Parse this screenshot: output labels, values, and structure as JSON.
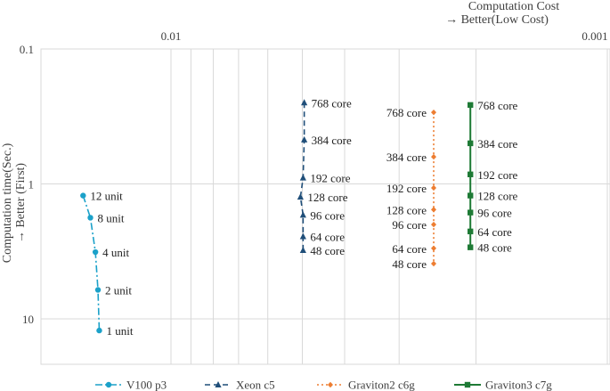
{
  "chart_data": {
    "type": "line",
    "title": "",
    "xlabel": "Computation Cost",
    "xlabel_sub": "→ Better(Low Cost)",
    "ylabel": "Computation time(Sec.)",
    "ylabel_sub": "→ Better (First)",
    "x_scale": "log",
    "x_reversed": true,
    "x_ticks": [
      {
        "value": 0.01,
        "label": "0.01"
      },
      {
        "value": 0.001,
        "label": "0.001"
      }
    ],
    "y_scale": "log",
    "y_reversed": true,
    "y_ticks": [
      {
        "value": 0.1,
        "label": "0.1"
      },
      {
        "value": 1,
        "label": "1"
      },
      {
        "value": 10,
        "label": "10"
      }
    ],
    "xlim": [
      0.02,
      0.001
    ],
    "ylim": [
      0.1,
      25
    ],
    "grid": true,
    "legend_position": "bottom",
    "series": [
      {
        "name": "V100 p3",
        "color": "#1ba1c9",
        "dash": "dashdot",
        "marker": "circle",
        "points": [
          {
            "x": 0.0159,
            "y": 1.22,
            "label": "12 unit"
          },
          {
            "x": 0.0153,
            "y": 1.78,
            "label": "8 unit"
          },
          {
            "x": 0.0149,
            "y": 3.2,
            "label": "4 unit"
          },
          {
            "x": 0.0147,
            "y": 6.1,
            "label": "2 unit"
          },
          {
            "x": 0.0146,
            "y": 12.2,
            "label": "1 unit"
          }
        ]
      },
      {
        "name": "Xeon c5",
        "color": "#1f4e79",
        "dash": "dashed",
        "marker": "triangle",
        "points": [
          {
            "x": 0.00495,
            "y": 0.25,
            "label": "768 core"
          },
          {
            "x": 0.00495,
            "y": 0.47,
            "label": "384 core"
          },
          {
            "x": 0.00498,
            "y": 0.9,
            "label": "192 core"
          },
          {
            "x": 0.00505,
            "y": 1.25,
            "label": "128 core"
          },
          {
            "x": 0.00498,
            "y": 1.7,
            "label": "96 core"
          },
          {
            "x": 0.00498,
            "y": 2.45,
            "label": "64 core"
          },
          {
            "x": 0.00498,
            "y": 3.1,
            "label": "48 core"
          }
        ]
      },
      {
        "name": "Graviton2 c6g",
        "color": "#ed7d31",
        "dash": "dotted",
        "marker": "diamond",
        "points": [
          {
            "x": 0.0025,
            "y": 0.295,
            "label": "768 core"
          },
          {
            "x": 0.0025,
            "y": 0.63,
            "label": "384 core"
          },
          {
            "x": 0.0025,
            "y": 1.07,
            "label": "192 core"
          },
          {
            "x": 0.0025,
            "y": 1.55,
            "label": "128 core"
          },
          {
            "x": 0.0025,
            "y": 2.0,
            "label": "96 core"
          },
          {
            "x": 0.0025,
            "y": 3.0,
            "label": "64 core"
          },
          {
            "x": 0.0025,
            "y": 3.9,
            "label": "48 core"
          }
        ]
      },
      {
        "name": "Graviton3 c7g",
        "color": "#1e7a35",
        "dash": "solid",
        "marker": "square",
        "points": [
          {
            "x": 0.00206,
            "y": 0.26,
            "label": "768 core"
          },
          {
            "x": 0.00206,
            "y": 0.5,
            "label": "384 core"
          },
          {
            "x": 0.00206,
            "y": 0.85,
            "label": "192 core"
          },
          {
            "x": 0.00206,
            "y": 1.22,
            "label": "128 core"
          },
          {
            "x": 0.00206,
            "y": 1.63,
            "label": "96 core"
          },
          {
            "x": 0.00206,
            "y": 2.25,
            "label": "64 core"
          },
          {
            "x": 0.00206,
            "y": 2.95,
            "label": "48 core"
          }
        ]
      }
    ]
  }
}
